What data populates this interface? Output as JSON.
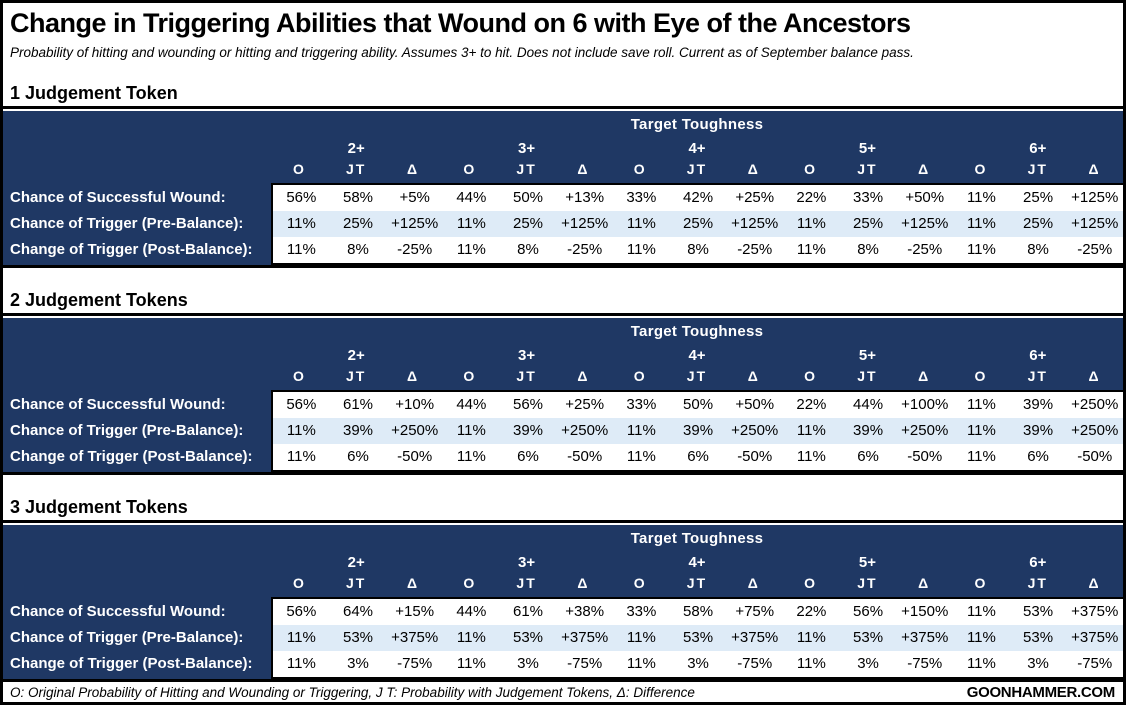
{
  "page": {
    "title": "Change in Triggering Abilities that Wound on 6 with Eye of the Ancestors",
    "subtitle": "Probability of hitting and wounding or hitting and triggering ability. Assumes 3+ to hit. Does not include save roll. Current as of September balance pass.",
    "footnote": "O: Original Probability of Hitting and Wounding or Triggering, J T: Probability with Judgement Tokens, Δ: Difference",
    "brand": "GOONHAMMER.COM"
  },
  "headers": {
    "group": "Target Toughness",
    "toughness": [
      "2+",
      "3+",
      "4+",
      "5+",
      "6+"
    ],
    "sub": [
      "O",
      "JT",
      "Δ"
    ]
  },
  "colors": {
    "header_navy": "#1F3864",
    "row_alt_blue": "#DEEBF7",
    "border_black": "#000000",
    "text_white": "#FFFFFF"
  },
  "chart_data": [
    {
      "type": "table",
      "title": "1 Judgement Token",
      "column_groups": [
        "2+",
        "3+",
        "4+",
        "5+",
        "6+"
      ],
      "sub_columns": [
        "O",
        "JT",
        "Δ"
      ],
      "rows": [
        {
          "label": "Chance of Successful Wound:",
          "values": [
            "56%",
            "58%",
            "+5%",
            "44%",
            "50%",
            "+13%",
            "33%",
            "42%",
            "+25%",
            "22%",
            "33%",
            "+50%",
            "11%",
            "25%",
            "+125%"
          ]
        },
        {
          "label": "Chance of Trigger (Pre-Balance):",
          "values": [
            "11%",
            "25%",
            "+125%",
            "11%",
            "25%",
            "+125%",
            "11%",
            "25%",
            "+125%",
            "11%",
            "25%",
            "+125%",
            "11%",
            "25%",
            "+125%"
          ]
        },
        {
          "label": "Change of Trigger (Post-Balance):",
          "values": [
            "11%",
            "8%",
            "-25%",
            "11%",
            "8%",
            "-25%",
            "11%",
            "8%",
            "-25%",
            "11%",
            "8%",
            "-25%",
            "11%",
            "8%",
            "-25%"
          ]
        }
      ]
    },
    {
      "type": "table",
      "title": "2 Judgement Tokens",
      "column_groups": [
        "2+",
        "3+",
        "4+",
        "5+",
        "6+"
      ],
      "sub_columns": [
        "O",
        "JT",
        "Δ"
      ],
      "rows": [
        {
          "label": "Chance of Successful Wound:",
          "values": [
            "56%",
            "61%",
            "+10%",
            "44%",
            "56%",
            "+25%",
            "33%",
            "50%",
            "+50%",
            "22%",
            "44%",
            "+100%",
            "11%",
            "39%",
            "+250%"
          ]
        },
        {
          "label": "Chance of Trigger (Pre-Balance):",
          "values": [
            "11%",
            "39%",
            "+250%",
            "11%",
            "39%",
            "+250%",
            "11%",
            "39%",
            "+250%",
            "11%",
            "39%",
            "+250%",
            "11%",
            "39%",
            "+250%"
          ]
        },
        {
          "label": "Change of Trigger (Post-Balance):",
          "values": [
            "11%",
            "6%",
            "-50%",
            "11%",
            "6%",
            "-50%",
            "11%",
            "6%",
            "-50%",
            "11%",
            "6%",
            "-50%",
            "11%",
            "6%",
            "-50%"
          ]
        }
      ]
    },
    {
      "type": "table",
      "title": "3 Judgement Tokens",
      "column_groups": [
        "2+",
        "3+",
        "4+",
        "5+",
        "6+"
      ],
      "sub_columns": [
        "O",
        "JT",
        "Δ"
      ],
      "rows": [
        {
          "label": "Chance of Successful Wound:",
          "values": [
            "56%",
            "64%",
            "+15%",
            "44%",
            "61%",
            "+38%",
            "33%",
            "58%",
            "+75%",
            "22%",
            "56%",
            "+150%",
            "11%",
            "53%",
            "+375%"
          ]
        },
        {
          "label": "Chance of Trigger (Pre-Balance):",
          "values": [
            "11%",
            "53%",
            "+375%",
            "11%",
            "53%",
            "+375%",
            "11%",
            "53%",
            "+375%",
            "11%",
            "53%",
            "+375%",
            "11%",
            "53%",
            "+375%"
          ]
        },
        {
          "label": "Change of Trigger (Post-Balance):",
          "values": [
            "11%",
            "3%",
            "-75%",
            "11%",
            "3%",
            "-75%",
            "11%",
            "3%",
            "-75%",
            "11%",
            "3%",
            "-75%",
            "11%",
            "3%",
            "-75%"
          ]
        }
      ]
    }
  ]
}
